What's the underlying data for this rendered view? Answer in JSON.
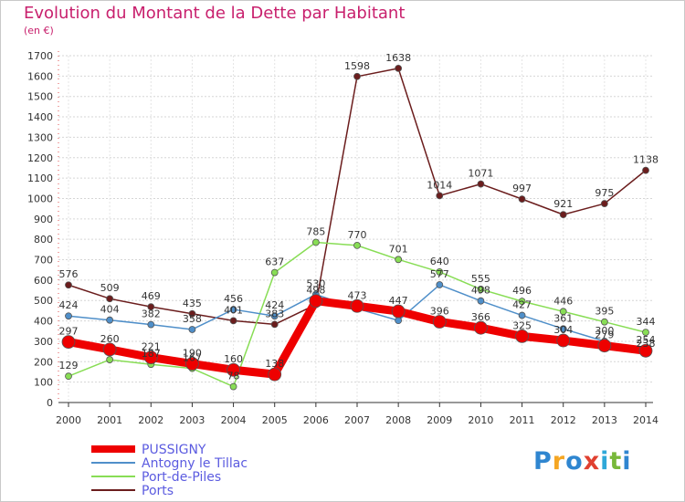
{
  "chart_data": {
    "type": "line",
    "title": "Evolution du Montant de la Dette par Habitant",
    "subtitle": "(en €)",
    "x": [
      "2000",
      "2001",
      "2002",
      "2003",
      "2004",
      "2005",
      "2006",
      "2007",
      "2008",
      "2009",
      "2010",
      "2011",
      "2012",
      "2013",
      "2014"
    ],
    "ylim": [
      0,
      1700
    ],
    "yticks": [
      0,
      100,
      200,
      300,
      400,
      500,
      600,
      700,
      800,
      900,
      1000,
      1100,
      1200,
      1300,
      1400,
      1500,
      1600,
      1700
    ],
    "grid": "horizontal dashed",
    "legend_position": "bottom-left",
    "series": [
      {
        "name": "PUSSIGNY",
        "color": "#ee0000",
        "values": [
          297,
          260,
          221,
          190,
          160,
          138,
          498,
          473,
          447,
          396,
          366,
          325,
          304,
          279,
          254
        ]
      },
      {
        "name": "Antogny le Tillac",
        "color": "#4f8fc9",
        "values": [
          424,
          404,
          382,
          358,
          456,
          424,
          530,
          460,
          402,
          577,
          498,
          427,
          361,
          300,
          238
        ]
      },
      {
        "name": "Port-de-Piles",
        "color": "#88dd55",
        "values": [
          129,
          210,
          187,
          167,
          78,
          637,
          785,
          770,
          701,
          640,
          555,
          496,
          446,
          395,
          344
        ]
      },
      {
        "name": "Ports",
        "color": "#6b1d1d",
        "values": [
          576,
          509,
          469,
          435,
          401,
          383,
          480,
          1598,
          1638,
          1014,
          1071,
          997,
          921,
          975,
          1138
        ]
      }
    ],
    "point_labels": [
      {
        "series": 0,
        "labels": [
          "297",
          "260",
          "221",
          "190",
          "160",
          "138",
          "498",
          "473",
          "447",
          "396",
          "366",
          "325",
          "304",
          "279",
          "254"
        ]
      },
      {
        "series": 1,
        "labels": [
          "424",
          "404",
          "382",
          "358",
          "456",
          "424",
          "530",
          "",
          "",
          "577",
          "498",
          "427",
          "361",
          "300",
          "238"
        ]
      },
      {
        "series": 2,
        "labels": [
          "129",
          "",
          "187",
          "167",
          "78",
          "637",
          "785",
          "770",
          "701",
          "640",
          "555",
          "496",
          "446",
          "395",
          "344"
        ]
      },
      {
        "series": 3,
        "labels": [
          "576",
          "509",
          "469",
          "435",
          "401",
          "383",
          "",
          "1598",
          "1638",
          "1014",
          "1071",
          "997",
          "921",
          "975",
          "1138"
        ]
      }
    ]
  },
  "logo": {
    "letters": [
      {
        "ch": "P",
        "color": "#2f86d0"
      },
      {
        "ch": "r",
        "color": "#f5a623"
      },
      {
        "ch": "o",
        "color": "#2f86d0"
      },
      {
        "ch": "x",
        "color": "#e04030"
      },
      {
        "ch": "i",
        "color": "#2fa8d8"
      },
      {
        "ch": "t",
        "color": "#78b83a"
      },
      {
        "ch": "i",
        "color": "#2f86d0"
      }
    ]
  }
}
